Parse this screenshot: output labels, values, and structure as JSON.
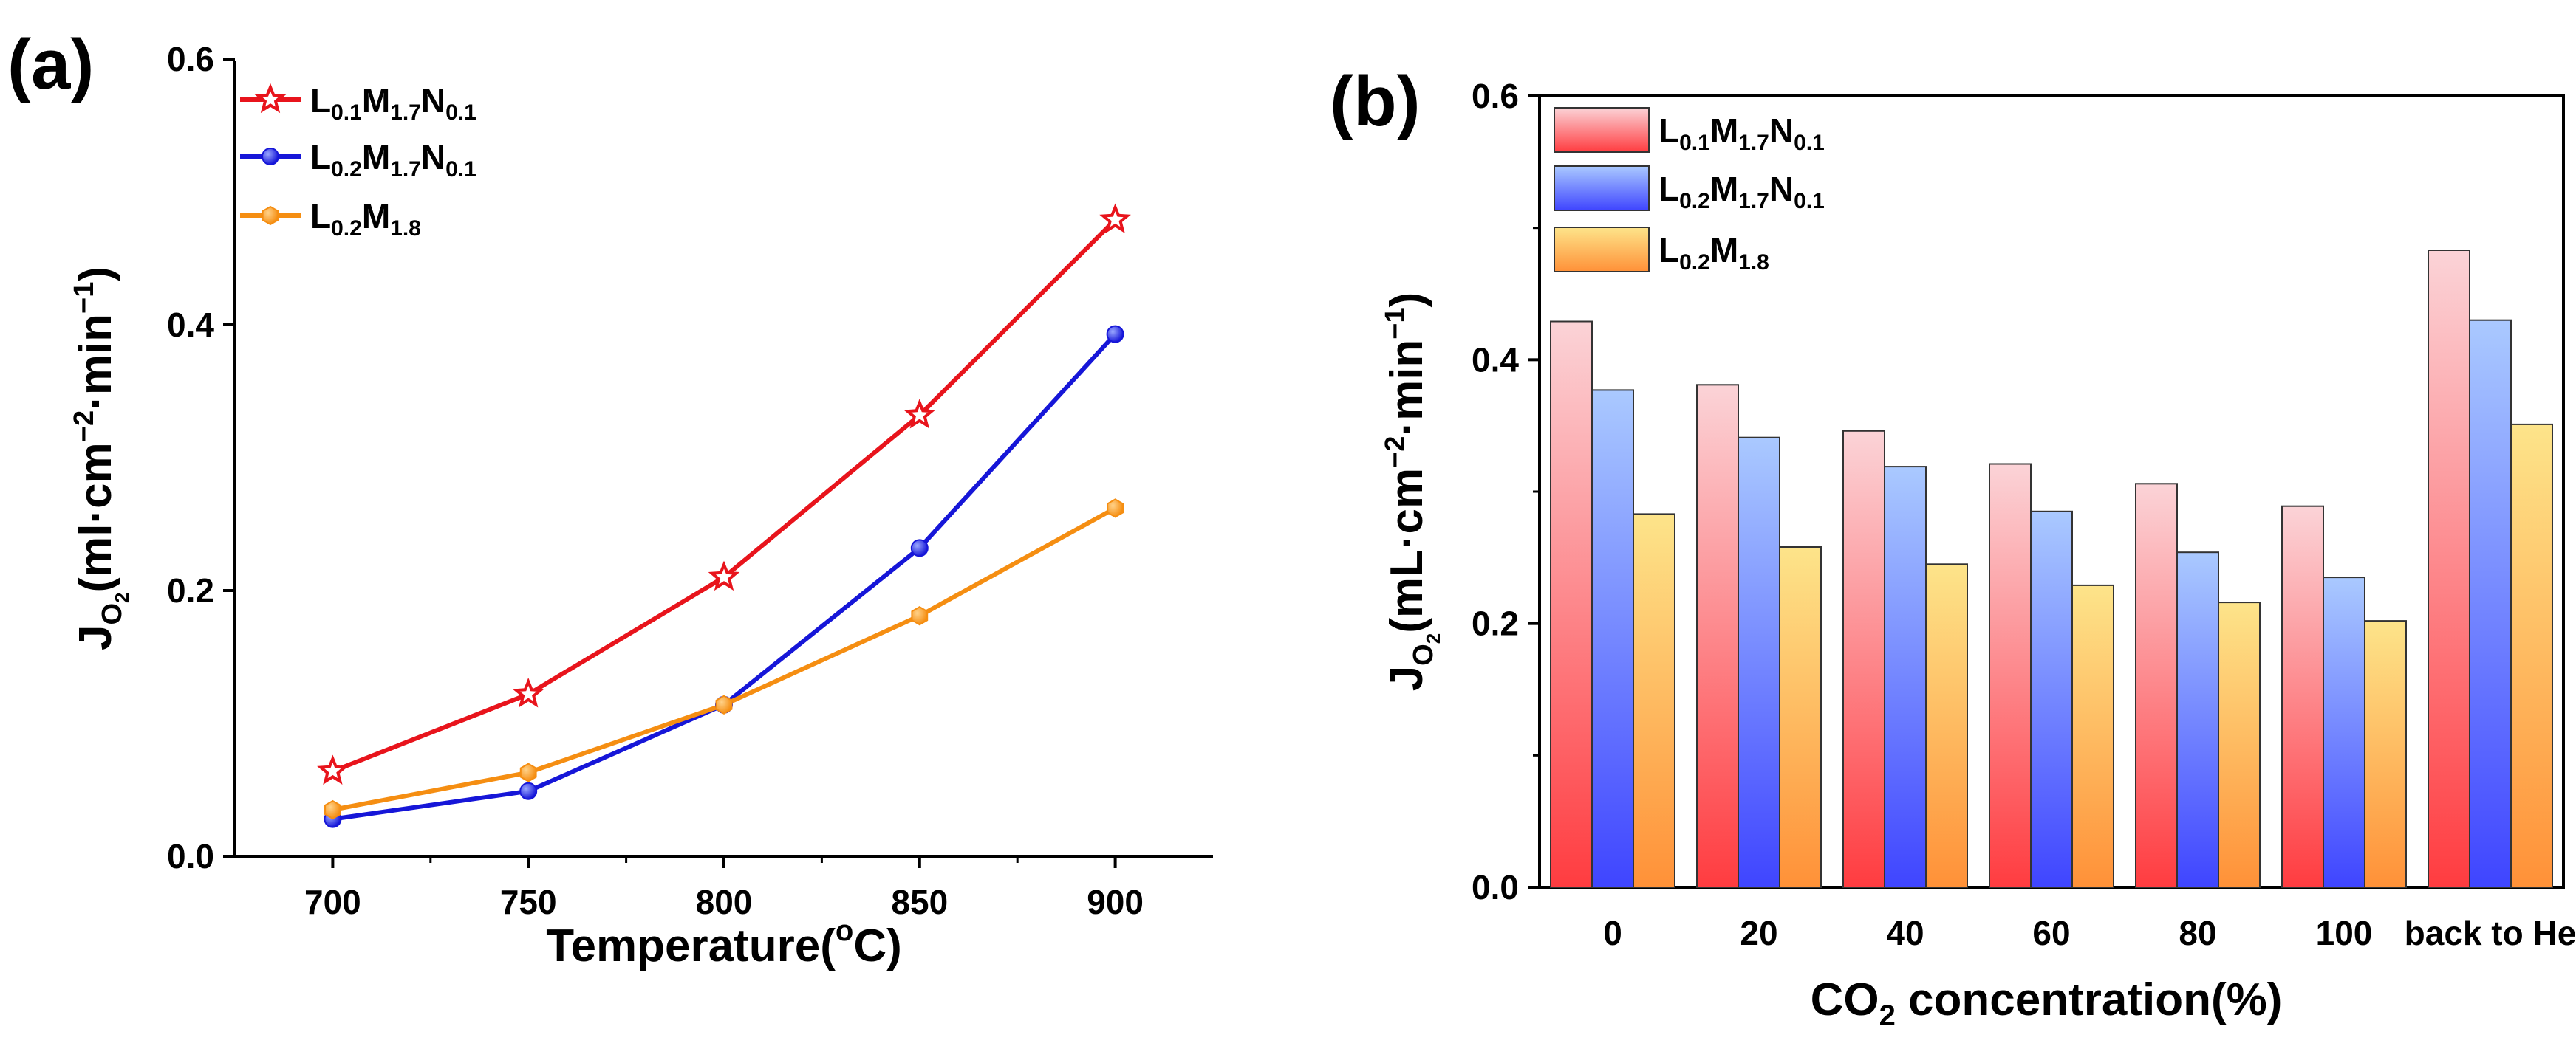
{
  "colors": {
    "red": "#e8141c",
    "blue": "#1616d8",
    "orange": "#f58e12",
    "bar_pink_top": "#fbd3d7",
    "bar_pink_bottom": "#ff3c40",
    "bar_blue_top": "#aac9ff",
    "bar_blue_bottom": "#3f45ff",
    "bar_yellow_top": "#fde48a",
    "bar_yellow_bottom": "#ff9138"
  },
  "chart_data": [
    {
      "type": "line",
      "panel_label": "(a)",
      "x": [
        700,
        750,
        800,
        850,
        900
      ],
      "xticks": [
        "700",
        "750",
        "800",
        "850",
        "900"
      ],
      "xlim": [
        675,
        925
      ],
      "ylim": [
        0.0,
        0.6
      ],
      "yticks": [
        "0.0",
        "0.2",
        "0.4",
        "0.6"
      ],
      "xlabel": {
        "main": "Temperature(",
        "sup": "o",
        "tail": "C)"
      },
      "ylabel": {
        "main": "J",
        "sub": "O",
        "subsub": "2",
        "rest": "(ml·cm",
        "sup1": "−2",
        "mid": "·min",
        "sup2": "−1",
        "end": ")"
      },
      "series": [
        {
          "name": "L0.1M1.7N0.1",
          "color": "red",
          "marker": "star",
          "values": [
            0.064,
            0.122,
            0.21,
            0.332,
            0.479
          ],
          "legend": {
            "L": "L",
            "s1": "0.1",
            "M": "M",
            "s2": "1.7",
            "N": "N",
            "s3": "0.1"
          }
        },
        {
          "name": "L0.2M1.7N0.1",
          "color": "blue",
          "marker": "sphere",
          "values": [
            0.028,
            0.049,
            0.114,
            0.232,
            0.393
          ],
          "legend": {
            "L": "L",
            "s1": "0.2",
            "M": "M",
            "s2": "1.7",
            "N": "N",
            "s3": "0.1"
          }
        },
        {
          "name": "L0.2M1.8",
          "color": "orange",
          "marker": "hexagon",
          "values": [
            0.035,
            0.063,
            0.114,
            0.181,
            0.262
          ],
          "legend": {
            "L": "L",
            "s1": "0.2",
            "M": "M",
            "s2": "1.8",
            "N": "",
            "s3": ""
          }
        }
      ],
      "legend_position": "top-left"
    },
    {
      "type": "bar",
      "panel_label": "(b)",
      "categories": [
        "0",
        "20",
        "40",
        "60",
        "80",
        "100",
        "back to He"
      ],
      "ylim": [
        0.0,
        0.6
      ],
      "yticks": [
        "0.0",
        "0.2",
        "0.4",
        "0.6"
      ],
      "xlabel": {
        "main": "CO",
        "sub": "2",
        "tail": " concentration(%)"
      },
      "ylabel": {
        "main": "J",
        "sub": "O",
        "subsub": "2",
        "rest": "(mL·cm",
        "sup1": "−2",
        "mid": "·min",
        "sup2": "−1",
        "end": ")"
      },
      "series": [
        {
          "name": "L0.1M1.7N0.1",
          "gradient": "pink",
          "values": [
            0.429,
            0.381,
            0.346,
            0.321,
            0.306,
            0.289,
            0.483
          ],
          "legend": {
            "L": "L",
            "s1": "0.1",
            "M": "M",
            "s2": "1.7",
            "N": "N",
            "s3": "0.1"
          }
        },
        {
          "name": "L0.2M1.7N0.1",
          "gradient": "blue",
          "values": [
            0.377,
            0.341,
            0.319,
            0.285,
            0.254,
            0.235,
            0.43
          ],
          "legend": {
            "L": "L",
            "s1": "0.2",
            "M": "M",
            "s2": "1.7",
            "N": "N",
            "s3": "0.1"
          }
        },
        {
          "name": "L0.2M1.8",
          "gradient": "yellow",
          "values": [
            0.283,
            0.258,
            0.245,
            0.229,
            0.216,
            0.202,
            0.351
          ],
          "legend": {
            "L": "L",
            "s1": "0.2",
            "M": "M",
            "s2": "1.8",
            "N": "",
            "s3": ""
          }
        }
      ],
      "legend_position": "top-left"
    }
  ]
}
